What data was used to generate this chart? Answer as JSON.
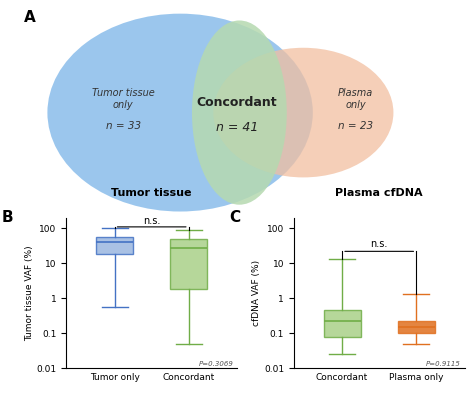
{
  "venn": {
    "left_label": "Tumor tissue\nonly",
    "left_n": "n = 33",
    "center_label": "Concordant",
    "center_n": "n = 41",
    "right_label": "Plasma\nonly",
    "right_n": "n = 23",
    "left_color": "#7ab4e8",
    "right_color": "#f2bfa0",
    "overlap_color": "#b5d9b0"
  },
  "panel_B": {
    "title": "Tumor tissue",
    "ylabel": "Tumor tissue VAF (%)",
    "xlabel_left": "Tumor only",
    "xlabel_right": "Concordant",
    "pval_text": "P=0.3069",
    "ns_text": "n.s.",
    "tumor_only": {
      "whislo": 0.55,
      "q1": 18,
      "med": 40,
      "q3": 58,
      "whishi": 100,
      "color": "#4472c4",
      "fill": "#9ab7e0"
    },
    "concordant": {
      "whislo": 0.05,
      "q1": 1.8,
      "med": 28,
      "q3": 48,
      "whishi": 90,
      "color": "#70ad47",
      "fill": "#aad088"
    },
    "ylim_log": [
      0.01,
      200
    ],
    "yticks": [
      0.01,
      0.1,
      1,
      10,
      100
    ],
    "yticklabels": [
      "0.01",
      "0.1",
      "1",
      "10",
      "100"
    ]
  },
  "panel_C": {
    "title": "Plasma cfDNA",
    "ylabel": "cfDNA VAF (%)",
    "xlabel_left": "Concordant",
    "xlabel_right": "Plasma only",
    "pval_text": "P=0.9115",
    "ns_text": "n.s.",
    "concordant": {
      "whislo": 0.025,
      "q1": 0.08,
      "med": 0.22,
      "q3": 0.45,
      "whishi": 13,
      "color": "#70ad47",
      "fill": "#aad088"
    },
    "plasma_only": {
      "whislo": 0.05,
      "q1": 0.1,
      "med": 0.155,
      "q3": 0.22,
      "whishi": 1.3,
      "color": "#e07020",
      "fill": "#e07020"
    },
    "ylim_log": [
      0.01,
      200
    ],
    "yticks": [
      0.01,
      0.1,
      1,
      10,
      100
    ],
    "yticklabels": [
      "0.01",
      "0.1",
      "1",
      "10",
      "100"
    ]
  }
}
